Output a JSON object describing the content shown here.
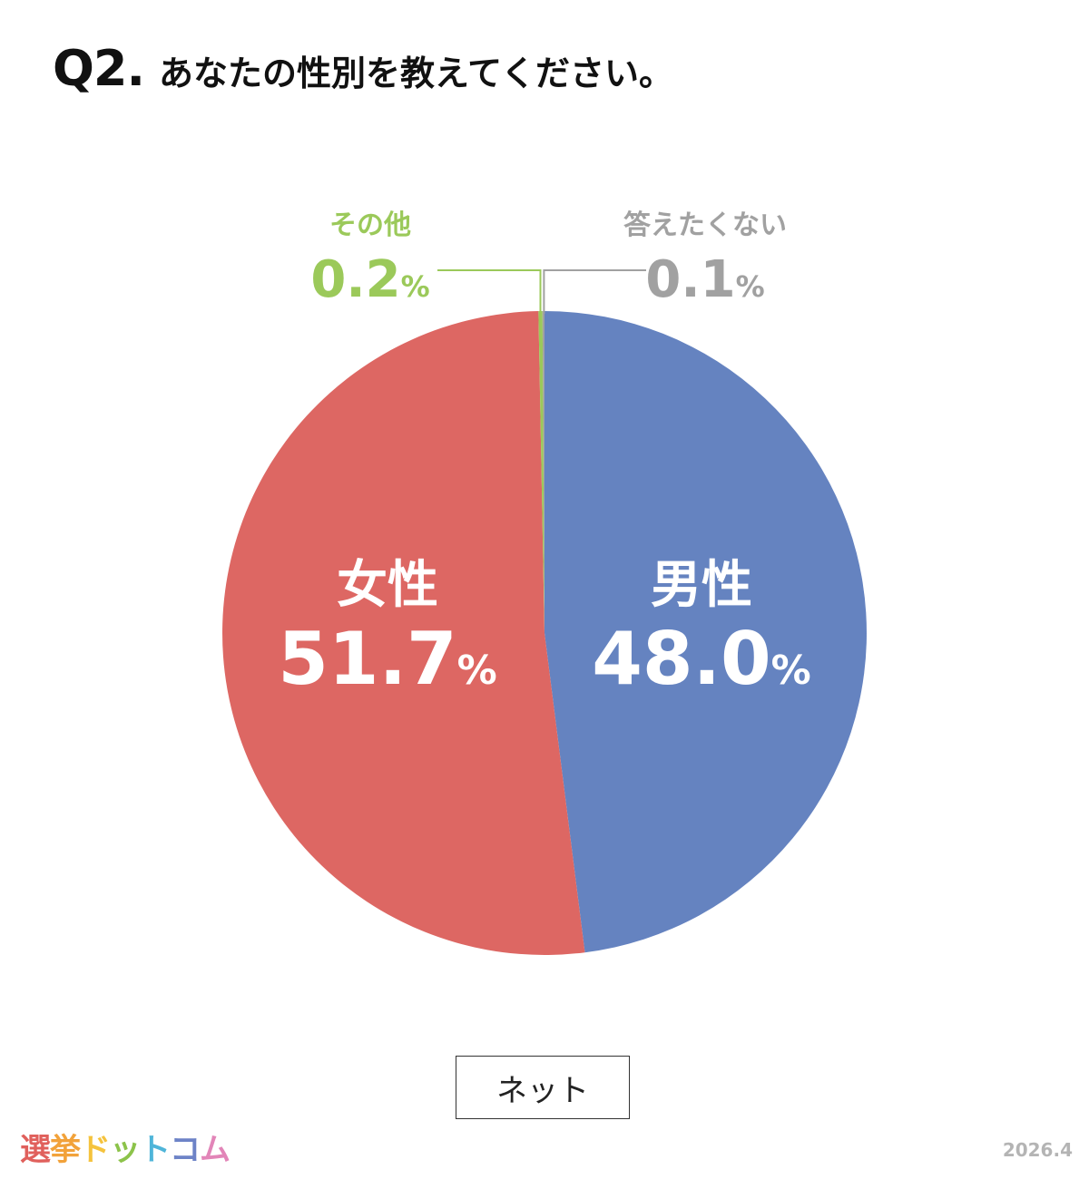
{
  "header": {
    "question_number": "Q2.",
    "question_text": "あなたの性別を教えてください。"
  },
  "chart_data": {
    "type": "pie",
    "slices": [
      {
        "label": "男性",
        "value": 48.0,
        "display": "48.0",
        "color": "#6583c0",
        "label_color": "#ffffff"
      },
      {
        "label": "女性",
        "value": 51.7,
        "display": "51.7",
        "color": "#dd6763",
        "label_color": "#ffffff"
      },
      {
        "label": "その他",
        "value": 0.2,
        "display": "0.2",
        "color": "#9bc95a",
        "label_color": "#9bc95a"
      },
      {
        "label": "答えたくない",
        "value": 0.1,
        "display": "0.1",
        "color": "#a1a1a1",
        "label_color": "#a1a1a1"
      }
    ],
    "unit": "%",
    "start_position": "12 o'clock",
    "direction": "clockwise"
  },
  "source": {
    "label": "ネット"
  },
  "footer": {
    "logo": {
      "chars": [
        "選",
        "挙",
        "ド",
        "ッ",
        "ト",
        "コ",
        "ム"
      ],
      "colors": [
        "#e0605c",
        "#f2a23a",
        "#f5c33d",
        "#8cc34a",
        "#4fb5d9",
        "#6d83c7",
        "#e285b8"
      ]
    },
    "date": "2026.4"
  }
}
